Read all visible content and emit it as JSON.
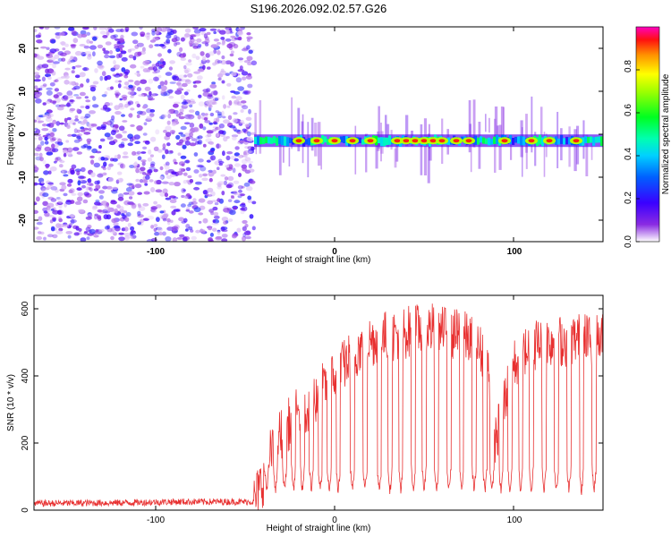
{
  "title": "S196.2026.092.02.57.G26",
  "chart_data": [
    {
      "type": "heatmap",
      "xlabel": "Height of straight line (km)",
      "ylabel": "Frequency (Hz)",
      "xlim": [
        -168,
        150
      ],
      "ylim": [
        -25,
        25
      ],
      "x_ticks": [
        "-100",
        "0",
        "100"
      ],
      "y_ticks": [
        "-20",
        "-10",
        "0",
        "10",
        "20"
      ],
      "colorbar": {
        "label": "Normalized spectral amplitude",
        "range": [
          0.0,
          1.0
        ],
        "ticks": [
          "0.0",
          "0.2",
          "0.4",
          "0.6",
          "0.8"
        ]
      },
      "features": {
        "noise_region_x": [
          -168,
          -45
        ],
        "ridge_region_x": [
          -45,
          150
        ],
        "ridge_frequency_hz": -1.5,
        "peak_ridge_x": [
          -20,
          -10,
          0,
          10,
          20,
          35,
          40,
          45,
          50,
          55,
          60,
          68,
          75,
          95,
          110,
          120,
          135
        ]
      }
    },
    {
      "type": "line",
      "xlabel": "Height of straight line (km)",
      "ylabel": "SNR (10 * v/v)",
      "xlim": [
        -168,
        150
      ],
      "ylim": [
        0,
        640
      ],
      "x_ticks": [
        "-100",
        "0",
        "100"
      ],
      "y_ticks": [
        "0",
        "200",
        "400",
        "600"
      ],
      "color": "#e83030",
      "series": [
        {
          "name": "SNR",
          "x": [
            -168,
            -120,
            -90,
            -60,
            -45,
            -40,
            -35,
            -30,
            -25,
            -20,
            -15,
            -10,
            -5,
            0,
            5,
            10,
            15,
            20,
            25,
            30,
            35,
            40,
            45,
            50,
            55,
            60,
            65,
            70,
            75,
            80,
            85,
            90,
            95,
            100,
            105,
            110,
            115,
            120,
            125,
            130,
            135,
            140,
            145,
            150
          ],
          "values": [
            20,
            22,
            25,
            25,
            25,
            90,
            180,
            230,
            260,
            290,
            310,
            340,
            370,
            400,
            430,
            460,
            490,
            505,
            510,
            520,
            525,
            530,
            535,
            540,
            540,
            530,
            525,
            520,
            510,
            480,
            460,
            200,
            330,
            430,
            470,
            490,
            500,
            505,
            505,
            505,
            510,
            510,
            510,
            510
          ]
        }
      ],
      "dip_x": [
        -38,
        -33,
        -28,
        -23,
        -18,
        -13,
        -8,
        -3,
        2,
        10,
        17,
        25,
        31,
        37,
        44,
        50,
        57,
        64,
        71,
        78,
        84,
        88,
        93,
        98,
        104,
        110,
        117,
        124,
        131,
        138,
        145
      ]
    }
  ]
}
